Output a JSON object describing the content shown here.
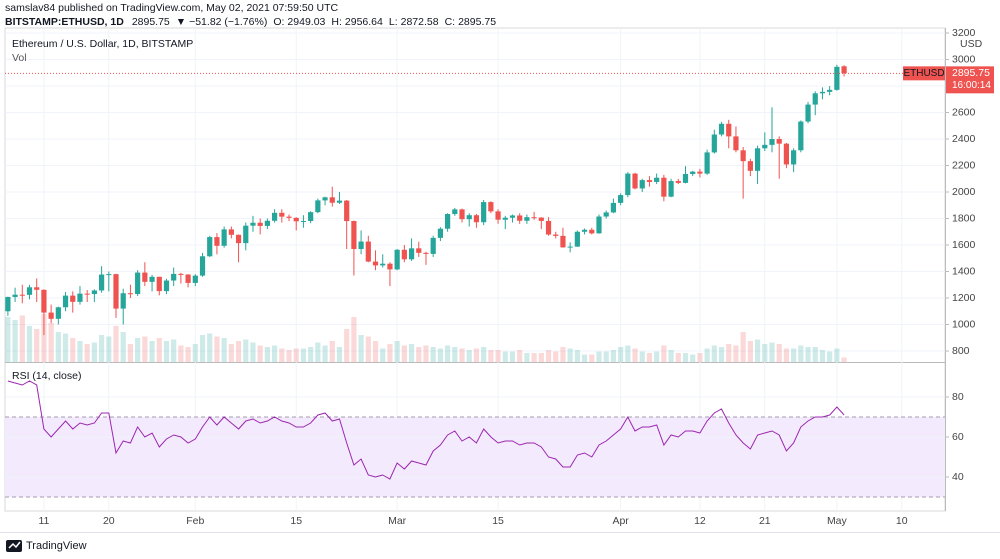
{
  "header": {
    "publisher": "samslav84 published on TradingView.com, May 02, 2021 07:59:50 UTC",
    "symbol": "BITSTAMP:ETHUSD, 1D",
    "price": "2895.75",
    "change": "▼ −51.82 (−1.76%)",
    "ohlc": [
      {
        "label": "O:",
        "value": "2949.03"
      },
      {
        "label": "H:",
        "value": "2956.64"
      },
      {
        "label": "L:",
        "value": "2872.58"
      },
      {
        "label": "C:",
        "value": "2895.75"
      }
    ]
  },
  "footer": {
    "brand": "TradingView"
  },
  "chart_data": {
    "type": "candlestick",
    "title": "Ethereum / U.S. Dollar, 1D, BITSTAMP",
    "volume_label": "Vol",
    "rsi_label": "RSI (14, close)",
    "currency": "USD",
    "symbol_tag": "ETHUSD",
    "countdown": "16:00:14",
    "last_price": 2895.75,
    "up_color": "#26a69a",
    "down_color": "#ef5350",
    "rsi_color": "#9c27b0",
    "grid": true,
    "xlim": [
      -0.4,
      130
    ],
    "xticks": [
      {
        "value": 5,
        "label": "11"
      },
      {
        "value": 14,
        "label": "20"
      },
      {
        "value": 26,
        "label": "Feb"
      },
      {
        "value": 40,
        "label": "15"
      },
      {
        "value": 54,
        "label": "Mar"
      },
      {
        "value": 68,
        "label": "15"
      },
      {
        "value": 85,
        "label": "Apr"
      },
      {
        "value": 96,
        "label": "12"
      },
      {
        "value": 105,
        "label": "21"
      },
      {
        "value": 115,
        "label": "May"
      },
      {
        "value": 124,
        "label": "10"
      }
    ],
    "ylim": [
      717,
      3238
    ],
    "yticks": [
      800,
      1000,
      1200,
      1400,
      1600,
      1800,
      2000,
      2200,
      2400,
      2600,
      2800,
      3000,
      3200
    ],
    "candles": [
      [
        1100,
        1210,
        1065,
        1208
      ],
      [
        1208,
        1278,
        1170,
        1225
      ],
      [
        1225,
        1300,
        1160,
        1224
      ],
      [
        1224,
        1300,
        1190,
        1281
      ],
      [
        1281,
        1348,
        1170,
        1262
      ],
      [
        1262,
        1265,
        920,
        1090
      ],
      [
        1090,
        1150,
        1010,
        1043
      ],
      [
        1043,
        1135,
        1000,
        1130
      ],
      [
        1130,
        1245,
        1100,
        1218
      ],
      [
        1218,
        1250,
        1090,
        1171
      ],
      [
        1171,
        1290,
        1150,
        1233
      ],
      [
        1233,
        1260,
        1170,
        1230
      ],
      [
        1230,
        1265,
        1170,
        1257
      ],
      [
        1257,
        1440,
        1240,
        1377
      ],
      [
        1377,
        1400,
        1250,
        1380
      ],
      [
        1380,
        1383,
        1050,
        1120
      ],
      [
        1120,
        1270,
        1000,
        1236
      ],
      [
        1236,
        1300,
        1200,
        1230
      ],
      [
        1230,
        1410,
        1215,
        1392
      ],
      [
        1392,
        1470,
        1290,
        1322
      ],
      [
        1322,
        1375,
        1250,
        1360
      ],
      [
        1360,
        1360,
        1220,
        1252
      ],
      [
        1252,
        1345,
        1230,
        1332
      ],
      [
        1332,
        1430,
        1290,
        1382
      ],
      [
        1382,
        1390,
        1310,
        1377
      ],
      [
        1377,
        1380,
        1280,
        1314
      ],
      [
        1314,
        1380,
        1290,
        1369
      ],
      [
        1369,
        1540,
        1360,
        1515
      ],
      [
        1515,
        1670,
        1510,
        1660
      ],
      [
        1660,
        1690,
        1530,
        1594
      ],
      [
        1594,
        1740,
        1580,
        1718
      ],
      [
        1718,
        1740,
        1650,
        1677
      ],
      [
        1677,
        1680,
        1470,
        1614
      ],
      [
        1614,
        1770,
        1560,
        1746
      ],
      [
        1746,
        1820,
        1700,
        1768
      ],
      [
        1768,
        1800,
        1680,
        1744
      ],
      [
        1744,
        1800,
        1720,
        1783
      ],
      [
        1783,
        1870,
        1770,
        1843
      ],
      [
        1843,
        1870,
        1770,
        1814
      ],
      [
        1814,
        1830,
        1780,
        1805
      ],
      [
        1805,
        1810,
        1710,
        1779
      ],
      [
        1779,
        1825,
        1730,
        1781
      ],
      [
        1781,
        1855,
        1765,
        1848
      ],
      [
        1848,
        1950,
        1840,
        1937
      ],
      [
        1937,
        1965,
        1900,
        1960
      ],
      [
        1960,
        2040,
        1890,
        1919
      ],
      [
        1919,
        2000,
        1910,
        1935
      ],
      [
        1935,
        1940,
        1570,
        1781
      ],
      [
        1781,
        1785,
        1370,
        1570
      ],
      [
        1570,
        1710,
        1530,
        1626
      ],
      [
        1626,
        1670,
        1470,
        1475
      ],
      [
        1475,
        1560,
        1410,
        1446
      ],
      [
        1446,
        1530,
        1430,
        1459
      ],
      [
        1459,
        1470,
        1290,
        1416
      ],
      [
        1416,
        1570,
        1410,
        1564
      ],
      [
        1564,
        1600,
        1470,
        1492
      ],
      [
        1492,
        1650,
        1480,
        1575
      ],
      [
        1575,
        1625,
        1510,
        1541
      ],
      [
        1541,
        1550,
        1450,
        1533
      ],
      [
        1533,
        1670,
        1510,
        1654
      ],
      [
        1654,
        1735,
        1630,
        1723
      ],
      [
        1723,
        1840,
        1700,
        1834
      ],
      [
        1834,
        1880,
        1820,
        1869
      ],
      [
        1869,
        1875,
        1770,
        1795
      ],
      [
        1795,
        1840,
        1740,
        1825
      ],
      [
        1825,
        1835,
        1730,
        1772
      ],
      [
        1772,
        1940,
        1750,
        1924
      ],
      [
        1924,
        1930,
        1840,
        1854
      ],
      [
        1854,
        1870,
        1760,
        1791
      ],
      [
        1791,
        1820,
        1720,
        1806
      ],
      [
        1806,
        1830,
        1770,
        1823
      ],
      [
        1823,
        1840,
        1760,
        1783
      ],
      [
        1783,
        1830,
        1760,
        1810
      ],
      [
        1810,
        1850,
        1790,
        1807
      ],
      [
        1807,
        1810,
        1720,
        1782
      ],
      [
        1782,
        1810,
        1670,
        1679
      ],
      [
        1679,
        1700,
        1650,
        1669
      ],
      [
        1669,
        1730,
        1580,
        1582
      ],
      [
        1582,
        1620,
        1545,
        1588
      ],
      [
        1588,
        1710,
        1585,
        1700
      ],
      [
        1700,
        1725,
        1680,
        1715
      ],
      [
        1715,
        1730,
        1680,
        1688
      ],
      [
        1688,
        1830,
        1685,
        1815
      ],
      [
        1815,
        1860,
        1800,
        1846
      ],
      [
        1846,
        1950,
        1840,
        1918
      ],
      [
        1918,
        1990,
        1900,
        1977
      ],
      [
        1977,
        2150,
        1960,
        2139
      ],
      [
        2139,
        2145,
        2020,
        2027
      ],
      [
        2027,
        2100,
        2000,
        2090
      ],
      [
        2090,
        2120,
        2040,
        2076
      ],
      [
        2076,
        2140,
        2060,
        2108
      ],
      [
        2108,
        2130,
        1930,
        1965
      ],
      [
        1965,
        2100,
        1960,
        2083
      ],
      [
        2083,
        2100,
        2060,
        2069
      ],
      [
        2069,
        2195,
        2065,
        2136
      ],
      [
        2136,
        2160,
        2120,
        2154
      ],
      [
        2154,
        2175,
        2110,
        2139
      ],
      [
        2139,
        2320,
        2130,
        2299
      ],
      [
        2299,
        2470,
        2290,
        2434
      ],
      [
        2434,
        2530,
        2420,
        2515
      ],
      [
        2515,
        2545,
        2330,
        2420
      ],
      [
        2420,
        2495,
        2300,
        2315
      ],
      [
        2315,
        2340,
        1950,
        2233
      ],
      [
        2233,
        2250,
        2120,
        2160
      ],
      [
        2160,
        2350,
        2060,
        2330
      ],
      [
        2330,
        2450,
        2310,
        2356
      ],
      [
        2356,
        2640,
        2300,
        2400
      ],
      [
        2400,
        2420,
        2100,
        2365
      ],
      [
        2365,
        2370,
        2180,
        2208
      ],
      [
        2208,
        2330,
        2150,
        2315
      ],
      [
        2315,
        2540,
        2300,
        2532
      ],
      [
        2532,
        2680,
        2520,
        2660
      ],
      [
        2660,
        2760,
        2580,
        2745
      ],
      [
        2745,
        2790,
        2700,
        2756
      ],
      [
        2756,
        2800,
        2730,
        2771
      ],
      [
        2771,
        2960,
        2765,
        2945
      ],
      [
        2949.03,
        2956.64,
        2872.58,
        2895.75
      ]
    ],
    "vlim": [
      0,
      400000
    ],
    "volume": [
      150000,
      140000,
      155000,
      120000,
      110000,
      160000,
      130000,
      100000,
      95000,
      80000,
      70000,
      60000,
      65000,
      90000,
      85000,
      120000,
      100000,
      60000,
      80000,
      85000,
      70000,
      80000,
      70000,
      75000,
      55000,
      50000,
      60000,
      90000,
      95000,
      85000,
      80000,
      60000,
      70000,
      75000,
      65000,
      55000,
      50000,
      55000,
      45000,
      40000,
      45000,
      45000,
      50000,
      65000,
      55000,
      70000,
      50000,
      110000,
      150000,
      90000,
      85000,
      70000,
      45000,
      60000,
      70000,
      55000,
      60000,
      50000,
      55000,
      50000,
      45000,
      55000,
      50000,
      45000,
      40000,
      45000,
      50000,
      40000,
      40000,
      35000,
      35000,
      40000,
      30000,
      30000,
      30000,
      40000,
      35000,
      50000,
      45000,
      40000,
      25000,
      25000,
      35000,
      35000,
      40000,
      50000,
      55000,
      45000,
      35000,
      30000,
      35000,
      55000,
      40000,
      30000,
      30000,
      25000,
      30000,
      45000,
      55000,
      50000,
      60000,
      55000,
      100000,
      70000,
      75000,
      60000,
      65000,
      60000,
      45000,
      45000,
      55000,
      50000,
      50000,
      40000,
      35000,
      45000,
      15000
    ],
    "rsi_ylim": [
      23,
      97
    ],
    "rsi_yticks": [
      80,
      60,
      40
    ],
    "rsi_band": [
      30,
      70
    ],
    "rsi": [
      88,
      87,
      86,
      88,
      86,
      64,
      60,
      64,
      68,
      64,
      67,
      66,
      67,
      72,
      72,
      52,
      58,
      57,
      65,
      60,
      62,
      55,
      59,
      61,
      60,
      57,
      59,
      65,
      70,
      66,
      70,
      67,
      64,
      68,
      69,
      67,
      68,
      70,
      68,
      67,
      65,
      65,
      67,
      71,
      72,
      68,
      69,
      57,
      46,
      49,
      41,
      40,
      41,
      39,
      47,
      44,
      48,
      47,
      46,
      53,
      56,
      61,
      63,
      58,
      60,
      57,
      64,
      60,
      57,
      58,
      58,
      56,
      57,
      57,
      55,
      50,
      49,
      45,
      45,
      51,
      52,
      50,
      56,
      58,
      61,
      64,
      70,
      63,
      65,
      65,
      66,
      56,
      61,
      60,
      63,
      63,
      62,
      68,
      72,
      74,
      67,
      61,
      57,
      54,
      61,
      62,
      63,
      61,
      53,
      57,
      65,
      68,
      70,
      70,
      71,
      75,
      71
    ]
  }
}
